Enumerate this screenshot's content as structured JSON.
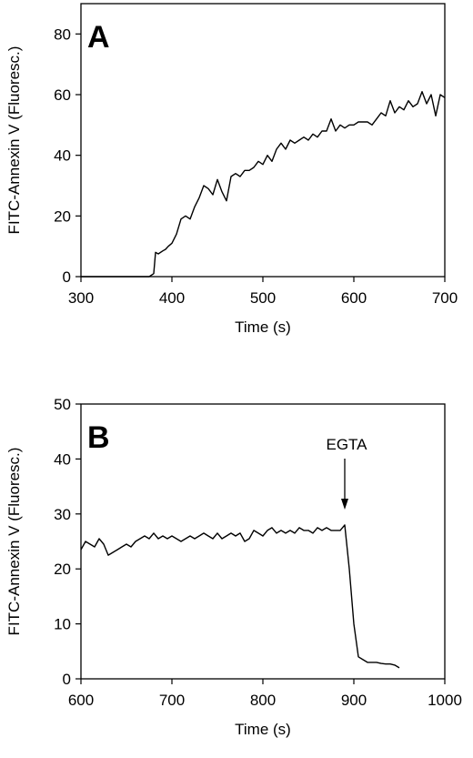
{
  "chart_data": [
    {
      "type": "line",
      "panel_label": "A",
      "xlabel": "Time (s)",
      "ylabel": "FITC-Annexin V (Fluoresc.)",
      "xlim": [
        300,
        700
      ],
      "ylim": [
        0,
        90
      ],
      "xticks": [
        300,
        400,
        500,
        600,
        700
      ],
      "yticks": [
        0,
        20,
        40,
        60,
        80
      ],
      "grid": false,
      "series": [
        {
          "x": [
            300,
            350,
            375,
            380,
            382,
            385,
            390,
            393,
            396,
            400,
            405,
            410,
            415,
            420,
            425,
            430,
            435,
            440,
            445,
            450,
            455,
            460,
            465,
            470,
            475,
            480,
            485,
            490,
            495,
            500,
            505,
            510,
            515,
            520,
            525,
            530,
            535,
            540,
            545,
            550,
            555,
            560,
            565,
            570,
            575,
            580,
            585,
            590,
            595,
            600,
            605,
            610,
            615,
            620,
            625,
            630,
            635,
            640,
            645,
            650,
            655,
            660,
            665,
            670,
            675,
            680,
            685,
            690,
            695,
            700
          ],
          "y": [
            0,
            0,
            0,
            1,
            8,
            7.5,
            8.5,
            9,
            10,
            11,
            14,
            19,
            20,
            19,
            23,
            26,
            30,
            29,
            27,
            32,
            28,
            25,
            33,
            34,
            33,
            35,
            35,
            36,
            38,
            37,
            40,
            38,
            42,
            44,
            42,
            45,
            44,
            45,
            46,
            45,
            47,
            46,
            48,
            48,
            52,
            48,
            50,
            49,
            50,
            50,
            51,
            51,
            51,
            50,
            52,
            54,
            53,
            58,
            54,
            56,
            55,
            58,
            56,
            57,
            61,
            57,
            60,
            53,
            60,
            59
          ]
        }
      ]
    },
    {
      "type": "line",
      "panel_label": "B",
      "xlabel": "Time (s)",
      "ylabel": "FITC-Annexin V (Fluoresc.)",
      "xlim": [
        600,
        1000
      ],
      "ylim": [
        0,
        50
      ],
      "xticks": [
        600,
        700,
        800,
        900,
        1000
      ],
      "yticks": [
        0,
        10,
        20,
        30,
        40,
        50
      ],
      "grid": false,
      "annotations": [
        {
          "text": "EGTA",
          "x": 890,
          "arrow": true
        }
      ],
      "series": [
        {
          "x": [
            600,
            605,
            610,
            615,
            620,
            625,
            630,
            635,
            640,
            645,
            650,
            655,
            660,
            665,
            670,
            675,
            680,
            685,
            690,
            695,
            700,
            705,
            710,
            715,
            720,
            725,
            730,
            735,
            740,
            745,
            750,
            755,
            760,
            765,
            770,
            775,
            780,
            785,
            790,
            795,
            800,
            805,
            810,
            815,
            820,
            825,
            830,
            835,
            840,
            845,
            850,
            855,
            860,
            865,
            870,
            875,
            880,
            885,
            890,
            895,
            900,
            905,
            910,
            915,
            920,
            925,
            930,
            935,
            940,
            945,
            950
          ],
          "y": [
            23.5,
            25,
            24.5,
            24,
            25.5,
            24.5,
            22.5,
            23,
            23.5,
            24,
            24.5,
            24,
            25,
            25.5,
            26,
            25.5,
            26.5,
            25.5,
            26,
            25.5,
            26,
            25.5,
            25,
            25.5,
            26,
            25.5,
            26,
            26.5,
            26,
            25.5,
            26.5,
            25.5,
            26,
            26.5,
            26,
            26.5,
            25,
            25.5,
            27,
            26.5,
            26,
            27,
            27.5,
            26.5,
            27,
            26.5,
            27,
            26.5,
            27.5,
            27,
            27,
            26.5,
            27.5,
            27,
            27.5,
            27,
            27,
            27,
            28,
            20,
            10,
            4,
            3.5,
            3,
            3,
            3,
            2.8,
            2.7,
            2.7,
            2.5,
            2
          ]
        }
      ]
    }
  ]
}
